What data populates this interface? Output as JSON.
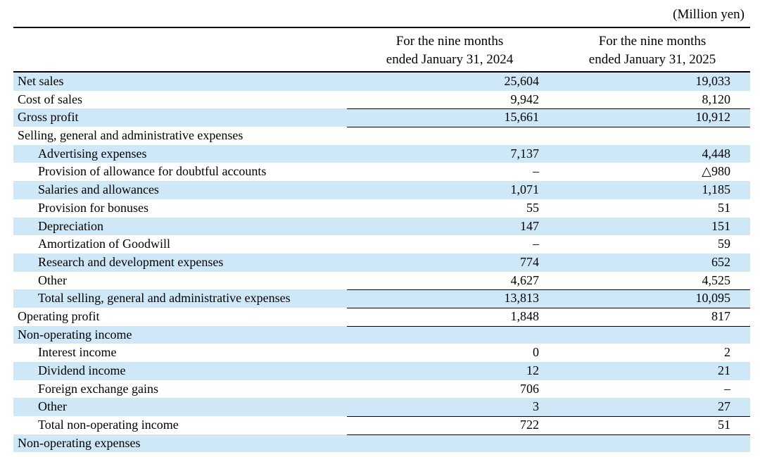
{
  "unit_label": "(Million yen)",
  "columns": [
    {
      "line1": "For the nine months",
      "line2": "ended January 31, 2024"
    },
    {
      "line1": "For the nine months",
      "line2": "ended January 31, 2025"
    }
  ],
  "colors": {
    "shade": "#cfe8f7",
    "rule": "#000000"
  },
  "rows": [
    {
      "label": "Net sales",
      "v1": "25,604",
      "v2": "19,033",
      "indent": false,
      "shaded": true,
      "ruled": false
    },
    {
      "label": "Cost of sales",
      "v1": "9,942",
      "v2": "8,120",
      "indent": false,
      "shaded": false,
      "ruled": false
    },
    {
      "label": "Gross profit",
      "v1": "15,661",
      "v2": "10,912",
      "indent": false,
      "shaded": true,
      "ruled": true
    },
    {
      "label": "Selling, general and administrative expenses",
      "v1": "",
      "v2": "",
      "indent": false,
      "shaded": false,
      "ruled": true
    },
    {
      "label": "Advertising expenses",
      "v1": "7,137",
      "v2": "4,448",
      "indent": true,
      "shaded": true,
      "ruled": false
    },
    {
      "label": "Provision of allowance for doubtful accounts",
      "v1": "–",
      "v2": "△980",
      "indent": true,
      "shaded": false,
      "ruled": false
    },
    {
      "label": "Salaries and allowances",
      "v1": "1,071",
      "v2": "1,185",
      "indent": true,
      "shaded": true,
      "ruled": false
    },
    {
      "label": "Provision for bonuses",
      "v1": "55",
      "v2": "51",
      "indent": true,
      "shaded": false,
      "ruled": false
    },
    {
      "label": "Depreciation",
      "v1": "147",
      "v2": "151",
      "indent": true,
      "shaded": true,
      "ruled": false
    },
    {
      "label": "Amortization of Goodwill",
      "v1": "–",
      "v2": "59",
      "indent": true,
      "shaded": false,
      "ruled": false
    },
    {
      "label": "Research and development expenses",
      "v1": "774",
      "v2": "652",
      "indent": true,
      "shaded": true,
      "ruled": false
    },
    {
      "label": "Other",
      "v1": "4,627",
      "v2": "4,525",
      "indent": true,
      "shaded": false,
      "ruled": false
    },
    {
      "label": "Total selling, general and administrative expenses",
      "v1": "13,813",
      "v2": "10,095",
      "indent": true,
      "shaded": true,
      "ruled": true
    },
    {
      "label": "Operating profit",
      "v1": "1,848",
      "v2": "817",
      "indent": false,
      "shaded": false,
      "ruled": true
    },
    {
      "label": "Non-operating income",
      "v1": "",
      "v2": "",
      "indent": false,
      "shaded": true,
      "ruled": true
    },
    {
      "label": "Interest income",
      "v1": "0",
      "v2": "2",
      "indent": true,
      "shaded": false,
      "ruled": false
    },
    {
      "label": "Dividend income",
      "v1": "12",
      "v2": "21",
      "indent": true,
      "shaded": true,
      "ruled": false
    },
    {
      "label": "Foreign exchange gains",
      "v1": "706",
      "v2": "–",
      "indent": true,
      "shaded": false,
      "ruled": false
    },
    {
      "label": "Other",
      "v1": "3",
      "v2": "27",
      "indent": true,
      "shaded": true,
      "ruled": false
    },
    {
      "label": "Total non-operating income",
      "v1": "722",
      "v2": "51",
      "indent": true,
      "shaded": false,
      "ruled": true
    },
    {
      "label": "Non-operating expenses",
      "v1": "",
      "v2": "",
      "indent": false,
      "shaded": true,
      "ruled": true
    }
  ]
}
